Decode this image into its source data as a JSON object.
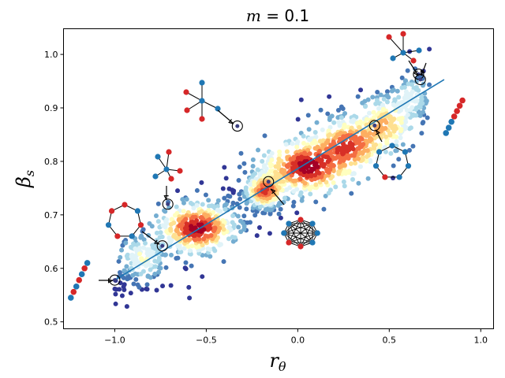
{
  "chart_data": {
    "type": "scatter",
    "title": "m = 0.1",
    "title_parts": {
      "var": "m",
      "rest": " = 0.1"
    },
    "xlabel": "r_θ",
    "xlabel_parts": {
      "base": "r",
      "sub": "θ"
    },
    "ylabel": "β_s",
    "ylabel_parts": {
      "base": "β",
      "sub": "s"
    },
    "xlim": [
      -1.28,
      1.07
    ],
    "ylim": [
      0.487,
      1.048
    ],
    "xticks": [
      -1.0,
      -0.5,
      0.0,
      0.5,
      1.0
    ],
    "xtick_labels": [
      "−1.0",
      "−0.5",
      "0.0",
      "0.5",
      "1.0"
    ],
    "yticks": [
      0.5,
      0.6,
      0.7,
      0.8,
      0.9,
      1.0
    ],
    "ytick_labels": [
      "0.5",
      "0.6",
      "0.7",
      "0.8",
      "0.9",
      "1.0"
    ],
    "grid": false,
    "colormap": [
      "#313695",
      "#4575b4",
      "#74add1",
      "#abd9e9",
      "#e0f3f8",
      "#ffffbf",
      "#fee090",
      "#fdae61",
      "#f46d43",
      "#d73027",
      "#a50026"
    ],
    "density_clusters": [
      {
        "x": -0.55,
        "y": 0.675,
        "sx": 0.1,
        "sy": 0.022,
        "n": 260
      },
      {
        "x": -0.18,
        "y": 0.745,
        "sx": 0.05,
        "sy": 0.015,
        "n": 200
      },
      {
        "x": 0.05,
        "y": 0.79,
        "sx": 0.12,
        "sy": 0.025,
        "n": 260
      },
      {
        "x": 0.28,
        "y": 0.83,
        "sx": 0.1,
        "sy": 0.025,
        "n": 200
      },
      {
        "x": 0.48,
        "y": 0.87,
        "sx": 0.08,
        "sy": 0.025,
        "n": 120
      },
      {
        "x": -0.85,
        "y": 0.62,
        "sx": 0.06,
        "sy": 0.02,
        "n": 70
      },
      {
        "x": 0.62,
        "y": 0.92,
        "sx": 0.05,
        "sy": 0.02,
        "n": 50
      }
    ],
    "fit_line": {
      "x": [
        -1.0,
        0.8
      ],
      "y": [
        0.578,
        0.953
      ]
    },
    "left_series": {
      "x": [
        -1.24,
        -1.225,
        -1.21,
        -1.195,
        -1.18,
        -1.165,
        -1.15
      ],
      "y": [
        0.545,
        0.556,
        0.566,
        0.578,
        0.589,
        0.6,
        0.61
      ],
      "colors": [
        "#1f77b4",
        "#d62728",
        "#1f77b4",
        "#d62728",
        "#1f77b4",
        "#d62728",
        "#1f77b4"
      ]
    },
    "right_series": {
      "x": [
        0.81,
        0.825,
        0.84,
        0.855,
        0.87,
        0.885,
        0.9
      ],
      "y": [
        0.853,
        0.863,
        0.874,
        0.884,
        0.894,
        0.904,
        0.914
      ],
      "colors": [
        "#1f77b4",
        "#1f77b4",
        "#1f77b4",
        "#d62728",
        "#d62728",
        "#d62728",
        "#d62728"
      ]
    },
    "highlight_points": [
      {
        "x": -1.0,
        "y": 0.578
      },
      {
        "x": -0.74,
        "y": 0.642
      },
      {
        "x": -0.71,
        "y": 0.72
      },
      {
        "x": -0.33,
        "y": 0.866
      },
      {
        "x": -0.16,
        "y": 0.762
      },
      {
        "x": 0.42,
        "y": 0.867
      },
      {
        "x": 0.66,
        "y": 0.963
      },
      {
        "x": 0.67,
        "y": 0.953
      }
    ],
    "colors": {
      "fit_line": "#1f77b4",
      "node_blue": "#1f77b4",
      "node_red": "#d62728"
    }
  }
}
